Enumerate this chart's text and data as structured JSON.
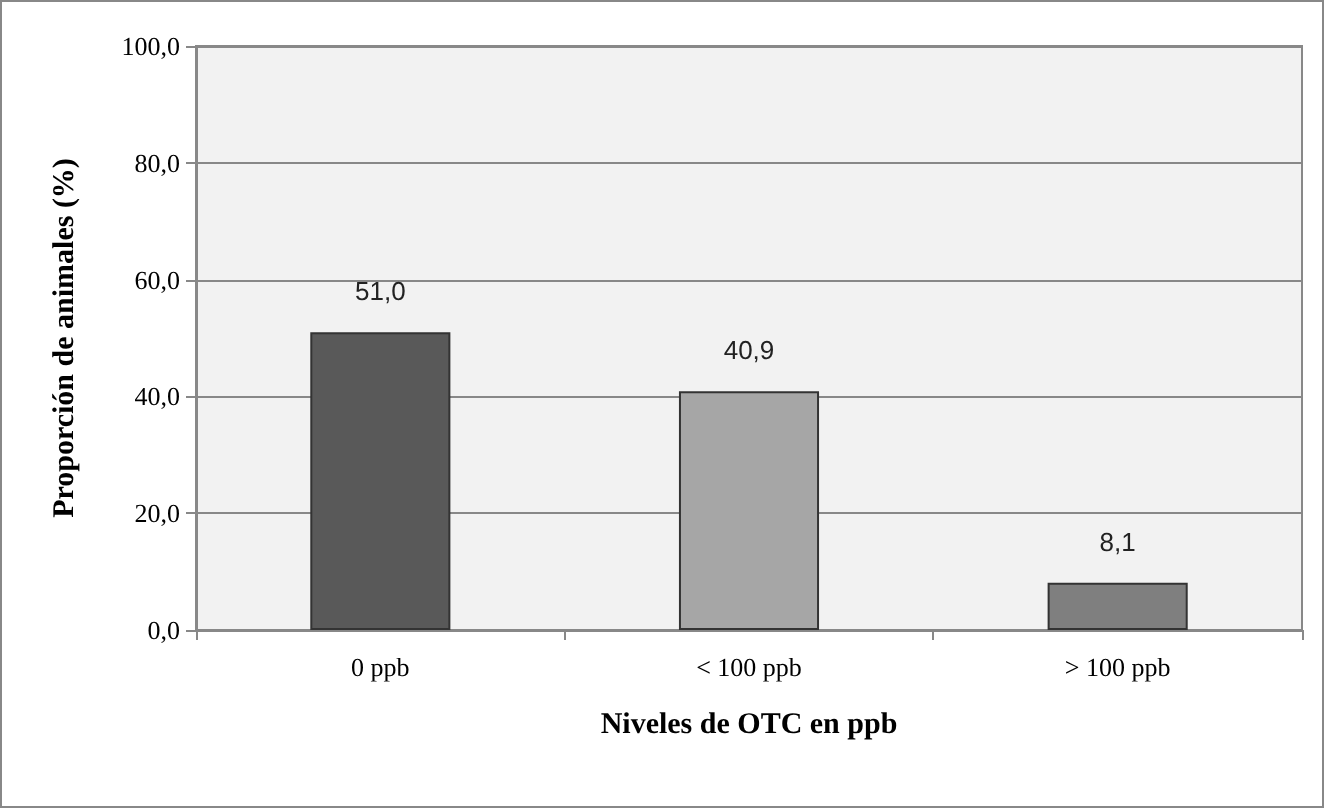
{
  "chart_data": {
    "type": "bar",
    "xlabel": "Niveles de OTC en ppb",
    "ylabel": "Proporción de animales (%)",
    "categories": [
      "0 ppb",
      "< 100 ppb",
      "> 100 ppb"
    ],
    "values": [
      51.0,
      40.9,
      8.1
    ],
    "colors": [
      "#595959",
      "#a6a6a6",
      "#7f7f7f"
    ],
    "value_labels": [
      "51,0",
      "40,9",
      "8,1"
    ],
    "ylim": [
      0,
      100
    ],
    "yticks": [
      {
        "value": 0,
        "label": "0,0"
      },
      {
        "value": 20,
        "label": "20,0"
      },
      {
        "value": 40,
        "label": "40,0"
      },
      {
        "value": 60,
        "label": "60,0"
      },
      {
        "value": 80,
        "label": "80,0"
      },
      {
        "value": 100,
        "label": "100,0"
      }
    ],
    "grid": "y"
  }
}
